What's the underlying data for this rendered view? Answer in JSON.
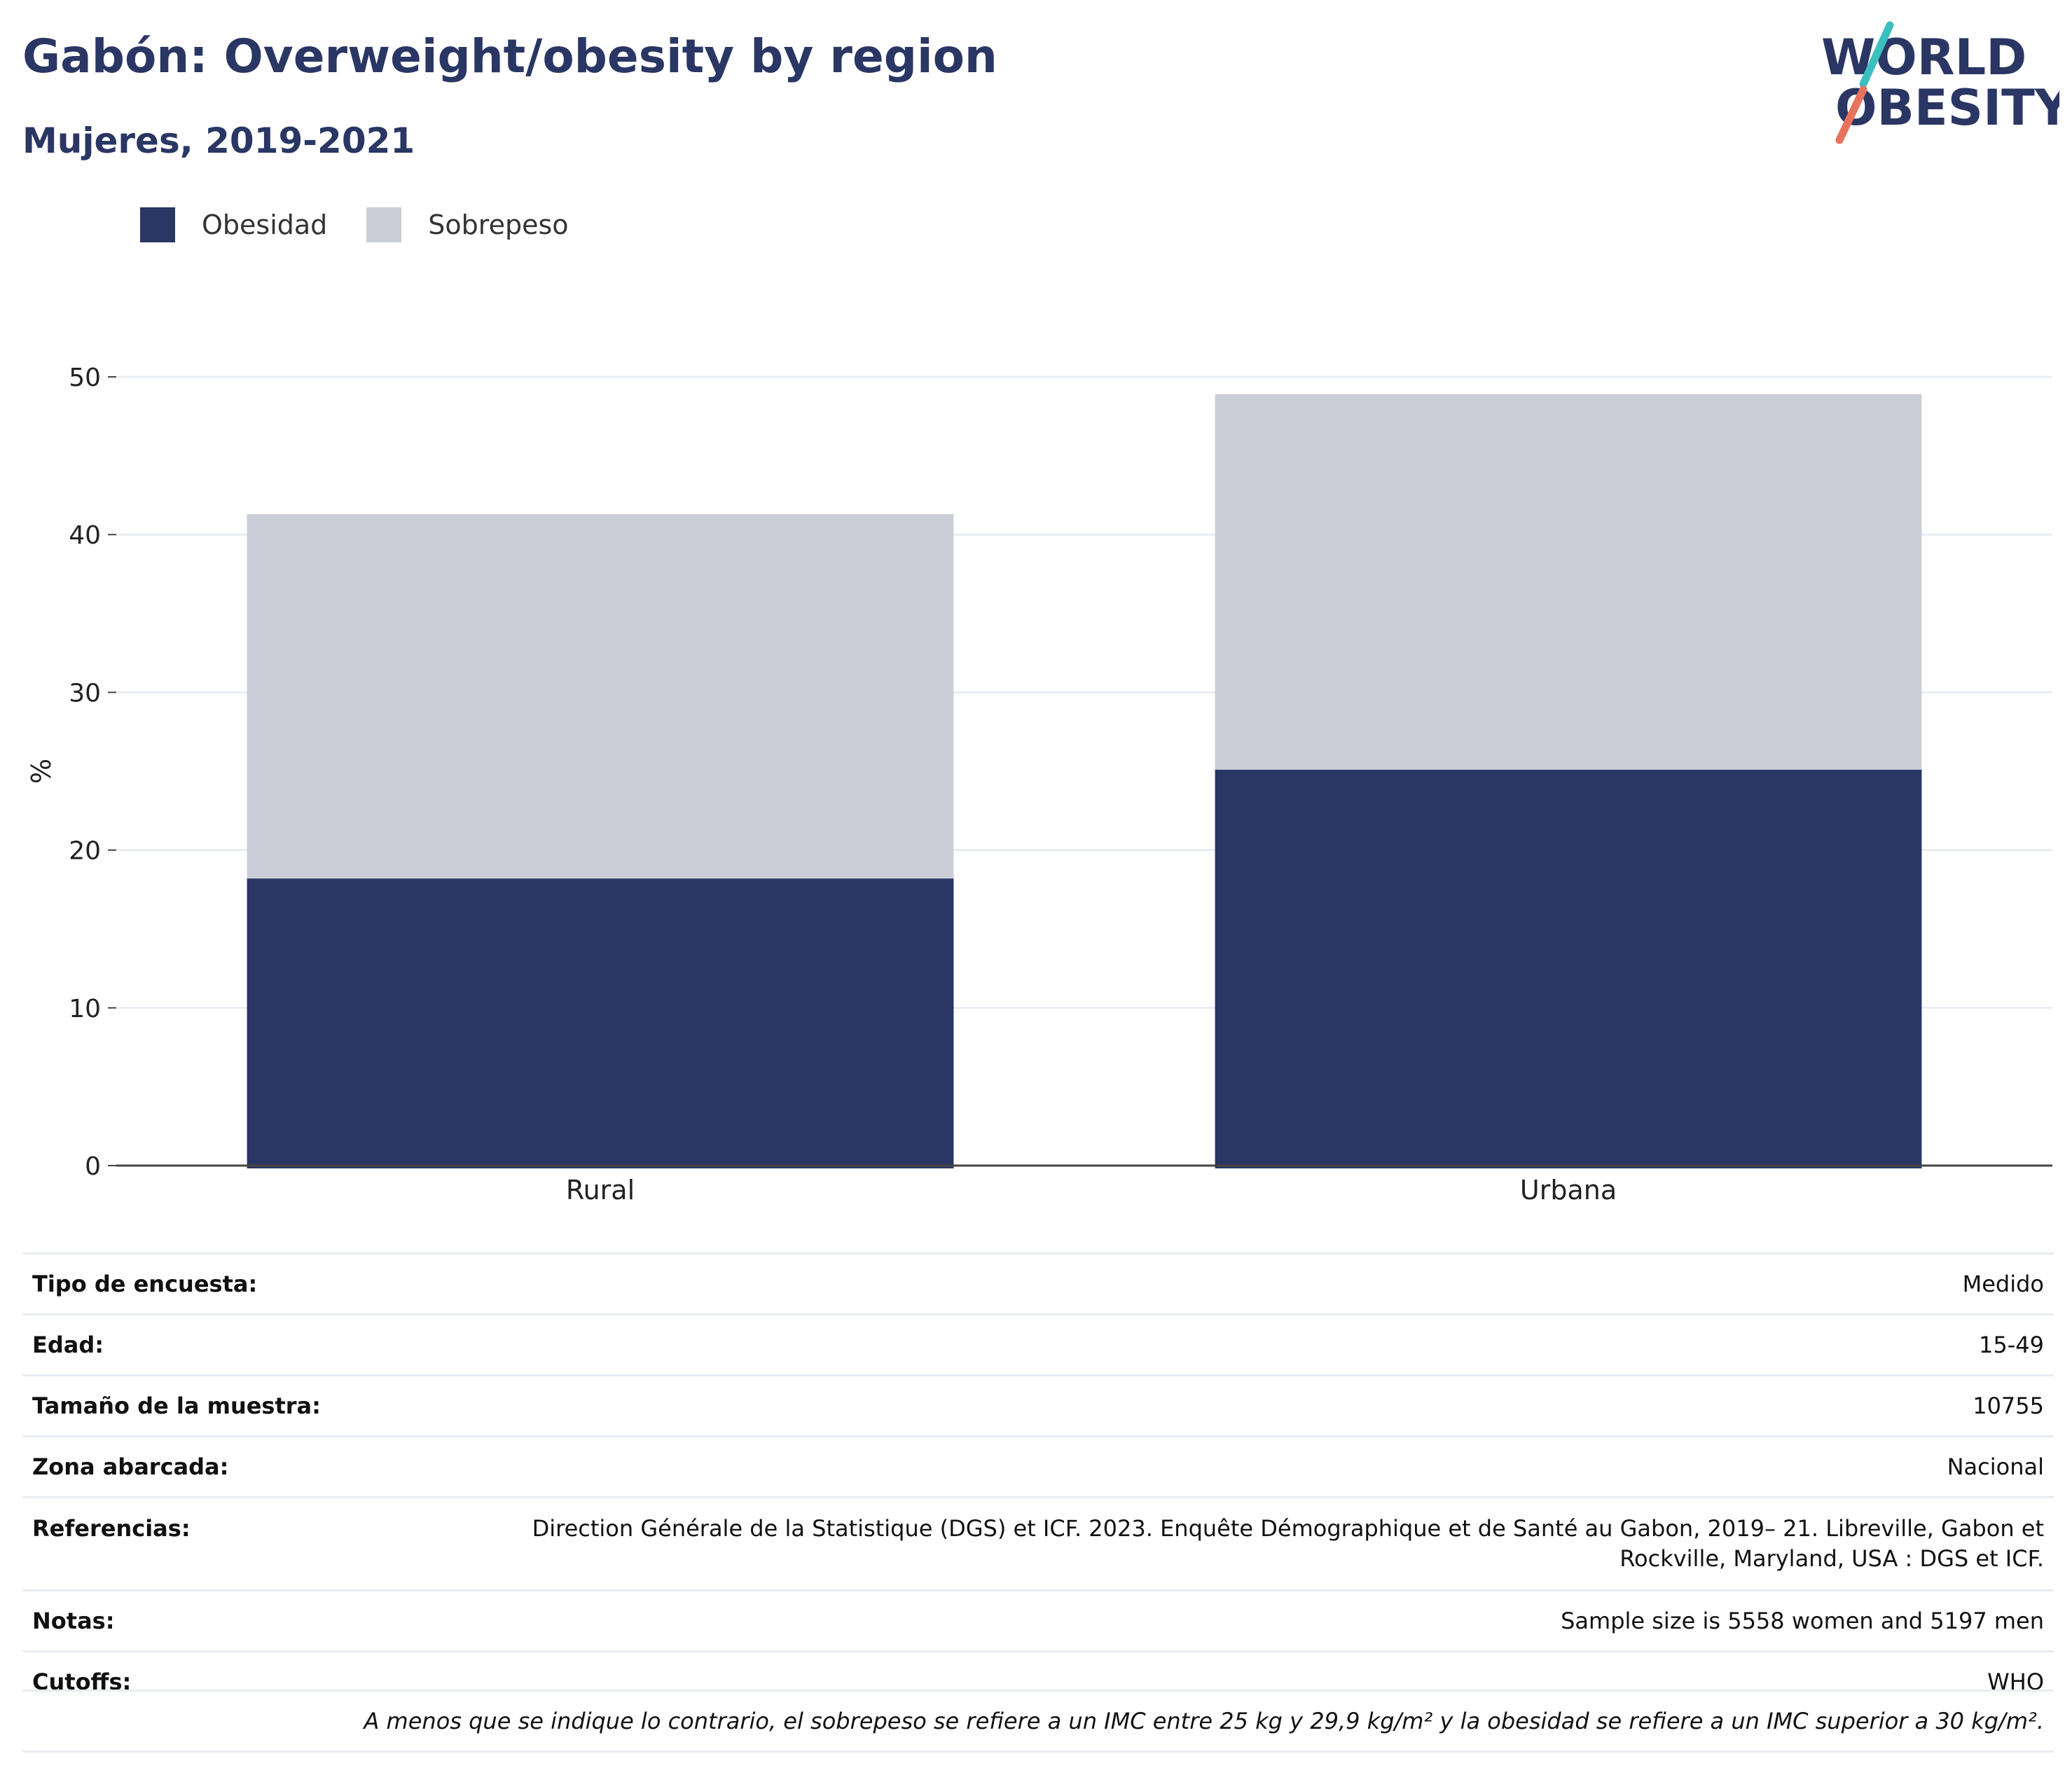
{
  "header": {
    "title": "Gabón: Overweight/obesity by region",
    "subtitle": "Mujeres, 2019-2021"
  },
  "logo": {
    "line1": "WORLD",
    "line2": "OBESITY"
  },
  "colors": {
    "obesity": "#2a3663",
    "overweight": "#cbcdd9",
    "accent_teal": "#3cbfbf",
    "accent_red": "#e8735c"
  },
  "chart_data": {
    "type": "bar",
    "stacked": true,
    "categories": [
      "Rural",
      "Urbana"
    ],
    "series": [
      {
        "name": "Obesidad",
        "values": [
          18.2,
          25.1
        ],
        "color": "#2a3663"
      },
      {
        "name": "Sobrepeso",
        "values": [
          23.1,
          23.8
        ],
        "color": "#cbcdd9"
      }
    ],
    "ylabel": "%",
    "ylim": [
      0,
      50
    ],
    "yticks": [
      0,
      10,
      20,
      30,
      40,
      50
    ],
    "grid": true,
    "legend_position": "top-left"
  },
  "info": [
    {
      "label": "Tipo de encuesta:",
      "value": "Medido"
    },
    {
      "label": "Edad:",
      "value": "15-49"
    },
    {
      "label": "Tamaño de la muestra:",
      "value": "10755"
    },
    {
      "label": "Zona abarcada:",
      "value": "Nacional"
    },
    {
      "label": "Referencias:",
      "value_line1": "Direction Générale de la Statistique (DGS) et ICF. 2023. Enquête Démographique et de Santé au Gabon, 2019– 21. Libreville, Gabon et",
      "value_line2": "Rockville, Maryland, USA : DGS et ICF."
    },
    {
      "label": "Notas:",
      "value": "Sample size is 5558 women and 5197 men"
    },
    {
      "label": "Cutoffs:",
      "value": "WHO"
    }
  ],
  "footnote": "A menos que se indique lo contrario, el sobrepeso se refiere a un IMC entre 25 kg y 29,9 kg/m² y la obesidad se refiere a un IMC superior a 30 kg/m²."
}
